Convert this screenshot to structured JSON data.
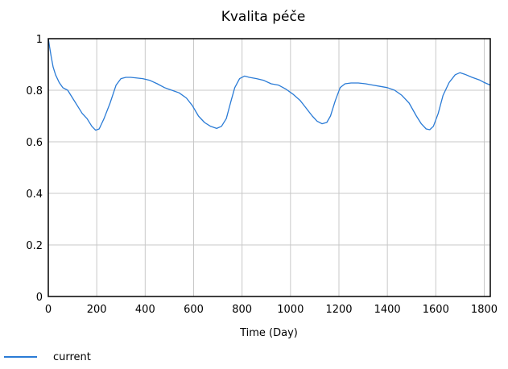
{
  "chart_data": {
    "type": "line",
    "title": "Kvalita péče",
    "xlabel": "Time (Day)",
    "ylabel": "",
    "xlim": [
      0,
      1825
    ],
    "ylim": [
      0,
      1
    ],
    "xticks": [
      0,
      200,
      400,
      600,
      800,
      1000,
      1200,
      1400,
      1600,
      1800
    ],
    "yticks": [
      0,
      0.2,
      0.4,
      0.6,
      0.8,
      1
    ],
    "ytick_labels": [
      "0",
      "0.2",
      "0.4",
      "0.6",
      "0.8",
      "1"
    ],
    "grid": true,
    "legend_position": "bottom-left",
    "series": [
      {
        "name": "current",
        "color": "#2a7bd6",
        "x": [
          0,
          5,
          12,
          20,
          30,
          45,
          60,
          80,
          100,
          120,
          140,
          160,
          180,
          195,
          210,
          230,
          255,
          280,
          300,
          320,
          340,
          360,
          390,
          420,
          450,
          480,
          510,
          540,
          570,
          595,
          620,
          645,
          670,
          695,
          715,
          735,
          755,
          770,
          790,
          810,
          830,
          860,
          890,
          920,
          950,
          980,
          1010,
          1040,
          1065,
          1090,
          1110,
          1130,
          1150,
          1165,
          1185,
          1205,
          1225,
          1250,
          1280,
          1310,
          1340,
          1370,
          1400,
          1430,
          1460,
          1490,
          1520,
          1540,
          1560,
          1575,
          1590,
          1610,
          1630,
          1655,
          1680,
          1700,
          1720,
          1750,
          1780,
          1800,
          1825
        ],
        "y": [
          1.0,
          0.97,
          0.93,
          0.89,
          0.86,
          0.83,
          0.81,
          0.8,
          0.77,
          0.74,
          0.71,
          0.69,
          0.66,
          0.645,
          0.65,
          0.69,
          0.75,
          0.82,
          0.845,
          0.85,
          0.85,
          0.848,
          0.845,
          0.838,
          0.825,
          0.81,
          0.8,
          0.79,
          0.77,
          0.74,
          0.7,
          0.675,
          0.66,
          0.652,
          0.66,
          0.69,
          0.76,
          0.81,
          0.845,
          0.855,
          0.85,
          0.845,
          0.838,
          0.825,
          0.82,
          0.805,
          0.785,
          0.76,
          0.73,
          0.7,
          0.68,
          0.67,
          0.675,
          0.7,
          0.76,
          0.81,
          0.825,
          0.828,
          0.828,
          0.825,
          0.82,
          0.815,
          0.81,
          0.8,
          0.78,
          0.75,
          0.7,
          0.67,
          0.65,
          0.647,
          0.66,
          0.71,
          0.78,
          0.83,
          0.86,
          0.868,
          0.862,
          0.85,
          0.84,
          0.83,
          0.82
        ]
      }
    ]
  }
}
